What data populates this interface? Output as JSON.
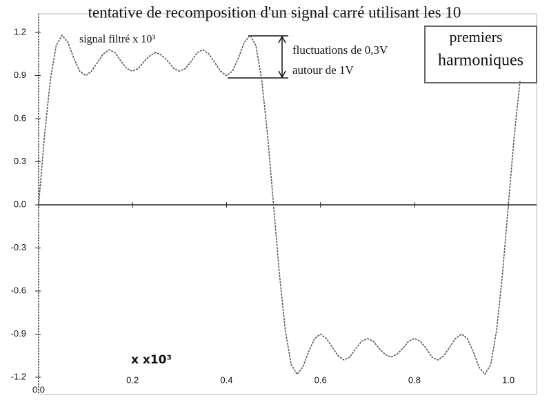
{
  "chart_data": {
    "type": "line",
    "title": "tentative de recomposition d'un signal carré utilisant les 10",
    "title_box": [
      "premiers",
      "harmoniques"
    ],
    "annotations": [
      "signal filtré x 10³",
      "fluctuations de 0,3V",
      "autour de 1V"
    ],
    "x_label": "x x10³",
    "color": "#555555",
    "x": [
      0,
      0.0125,
      0.025,
      0.0375,
      0.05,
      0.0625,
      0.075,
      0.0875,
      0.1,
      0.1125,
      0.125,
      0.1375,
      0.15,
      0.1625,
      0.175,
      0.1875,
      0.2,
      0.2125,
      0.225,
      0.2375,
      0.25,
      0.2625,
      0.275,
      0.2875,
      0.3,
      0.3125,
      0.325,
      0.3375,
      0.35,
      0.3625,
      0.375,
      0.3875,
      0.4,
      0.4125,
      0.425,
      0.4375,
      0.45,
      0.4625,
      0.475,
      0.4875,
      0.5,
      0.5125,
      0.525,
      0.5375,
      0.55,
      0.5625,
      0.575,
      0.5875,
      0.6,
      0.6125,
      0.625,
      0.6375,
      0.65,
      0.6625,
      0.675,
      0.6875,
      0.7,
      0.7125,
      0.725,
      0.7375,
      0.75,
      0.7625,
      0.775,
      0.7875,
      0.8,
      0.8125,
      0.825,
      0.8375,
      0.85,
      0.8625,
      0.875,
      0.8875,
      0.9,
      0.9125,
      0.925,
      0.9375,
      0.95,
      0.9625,
      0.975,
      0.9875,
      1,
      1.0125,
      1.025
    ],
    "values": [
      0,
      0.48,
      0.87,
      1.11,
      1.18,
      1.13,
      1.02,
      0.93,
      0.9,
      0.93,
      0.99,
      1.05,
      1.08,
      1.06,
      1,
      0.95,
      0.93,
      0.95,
      1,
      1.04,
      1.06,
      1.04,
      1,
      0.95,
      0.93,
      0.95,
      1,
      1.06,
      1.08,
      1.05,
      0.99,
      0.93,
      0.9,
      0.93,
      1.02,
      1.13,
      1.18,
      1.11,
      0.87,
      0.48,
      0,
      -0.48,
      -0.87,
      -1.11,
      -1.18,
      -1.13,
      -1.02,
      -0.93,
      -0.9,
      -0.93,
      -0.99,
      -1.05,
      -1.08,
      -1.06,
      -1,
      -0.95,
      -0.93,
      -0.95,
      -1,
      -1.04,
      -1.06,
      -1.04,
      -1,
      -0.95,
      -0.93,
      -0.95,
      -1,
      -1.06,
      -1.08,
      -1.05,
      -0.99,
      -0.93,
      -0.9,
      -0.93,
      -1.02,
      -1.13,
      -1.18,
      -1.11,
      -0.87,
      -0.48,
      0,
      0.48,
      0.87
    ],
    "xlim": [
      0,
      1.06
    ],
    "ylim": [
      -1.32,
      1.33
    ],
    "xticks": [
      {
        "value": 0,
        "label": "0.0"
      },
      0.2,
      0.4,
      0.6,
      0.8,
      {
        "value": 1,
        "label": "1.0"
      }
    ],
    "yticks": [
      -1.2,
      -0.9,
      -0.6,
      -0.3,
      {
        "value": 0,
        "label": "0.0"
      },
      0.3,
      0.6,
      0.9,
      1.2
    ],
    "grid": false
  }
}
